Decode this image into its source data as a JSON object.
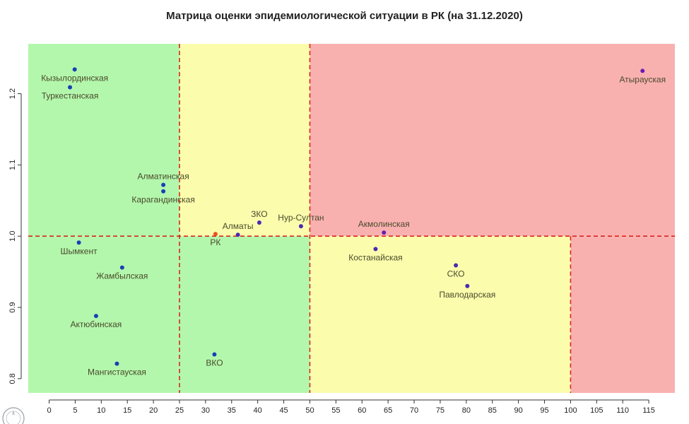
{
  "chart_data": {
    "type": "scatter",
    "title": "Матрица оценки эпидемиологической ситуации в РК (на 31.12.2020)",
    "xlabel": "",
    "ylabel": "",
    "xlim": [
      -4,
      120
    ],
    "ylim": [
      0.78,
      1.27
    ],
    "x_ticks": [
      0,
      5,
      10,
      15,
      20,
      25,
      30,
      35,
      40,
      45,
      50,
      55,
      60,
      65,
      70,
      75,
      80,
      85,
      90,
      95,
      100,
      105,
      110,
      115
    ],
    "y_ticks": [
      0.8,
      0.9,
      1.0,
      1.1,
      1.2
    ],
    "y_tick_labels": [
      "0.8",
      "0.9",
      "1.0",
      "1.1",
      "1.2"
    ],
    "threshold_lines": {
      "x": [
        25,
        50,
        100
      ],
      "y": 1.0
    },
    "zones": [
      {
        "x": [
          -4,
          25
        ],
        "y": [
          1.0,
          1.27
        ],
        "color": "#b3f7ad"
      },
      {
        "x": [
          25,
          50
        ],
        "y": [
          1.0,
          1.27
        ],
        "color": "#fbfdad"
      },
      {
        "x": [
          50,
          120
        ],
        "y": [
          1.0,
          1.27
        ],
        "color": "#f9b1b0"
      },
      {
        "x": [
          -4,
          50
        ],
        "y": [
          0.78,
          1.0
        ],
        "color": "#b3f7ad"
      },
      {
        "x": [
          50,
          100
        ],
        "y": [
          0.78,
          1.0
        ],
        "color": "#fbfdad"
      },
      {
        "x": [
          100,
          120
        ],
        "y": [
          0.78,
          1.0
        ],
        "color": "#f9b1b0"
      }
    ],
    "line_color": "#d9261c",
    "grid": false,
    "points": [
      {
        "label": "Кызылординская",
        "x": 4.9,
        "y": 1.234,
        "label_pos": "below",
        "color": "#1a3fb5"
      },
      {
        "label": "Туркестанская",
        "x": 4.0,
        "y": 1.209,
        "label_pos": "below",
        "color": "#1a3fb5"
      },
      {
        "label": "Атырауская",
        "x": 113.8,
        "y": 1.232,
        "label_pos": "below",
        "color": "#6a1cb0"
      },
      {
        "label": "Алматинская",
        "x": 21.9,
        "y": 1.072,
        "label_pos": "above",
        "color": "#1a3fb5"
      },
      {
        "label": "Карагандинская",
        "x": 21.9,
        "y": 1.063,
        "label_pos": "below",
        "color": "#1a3fb5"
      },
      {
        "label": "ЗКО",
        "x": 40.3,
        "y": 1.019,
        "label_pos": "above",
        "color": "#4b2ab0"
      },
      {
        "label": "Нур-Султан",
        "x": 48.3,
        "y": 1.014,
        "label_pos": "above",
        "color": "#4b2ab0"
      },
      {
        "label": "Алматы",
        "x": 36.2,
        "y": 1.002,
        "label_pos": "above",
        "color": "#4b2ab0"
      },
      {
        "label": "РК",
        "x": 31.9,
        "y": 1.003,
        "label_pos": "below",
        "color": "#e8521c"
      },
      {
        "label": "Акмолинская",
        "x": 64.2,
        "y": 1.005,
        "label_pos": "above",
        "color": "#6a1cb0"
      },
      {
        "label": "Шымкент",
        "x": 5.7,
        "y": 0.991,
        "label_pos": "below",
        "color": "#1a3fb5"
      },
      {
        "label": "Костанайская",
        "x": 62.6,
        "y": 0.982,
        "label_pos": "below",
        "color": "#4b2ab0"
      },
      {
        "label": "Жамбылская",
        "x": 14.0,
        "y": 0.956,
        "label_pos": "below",
        "color": "#1a3fb5"
      },
      {
        "label": "СКО",
        "x": 78.0,
        "y": 0.959,
        "label_pos": "below",
        "color": "#4b2ab0"
      },
      {
        "label": "Павлодарская",
        "x": 80.2,
        "y": 0.93,
        "label_pos": "below",
        "color": "#4b2ab0"
      },
      {
        "label": "Актюбинская",
        "x": 9.0,
        "y": 0.888,
        "label_pos": "below",
        "color": "#1a3fb5"
      },
      {
        "label": "ВКО",
        "x": 31.7,
        "y": 0.834,
        "label_pos": "below",
        "color": "#1a3fb5"
      },
      {
        "label": "Мангистауская",
        "x": 13.0,
        "y": 0.821,
        "label_pos": "below",
        "color": "#1a3fb5"
      }
    ]
  }
}
